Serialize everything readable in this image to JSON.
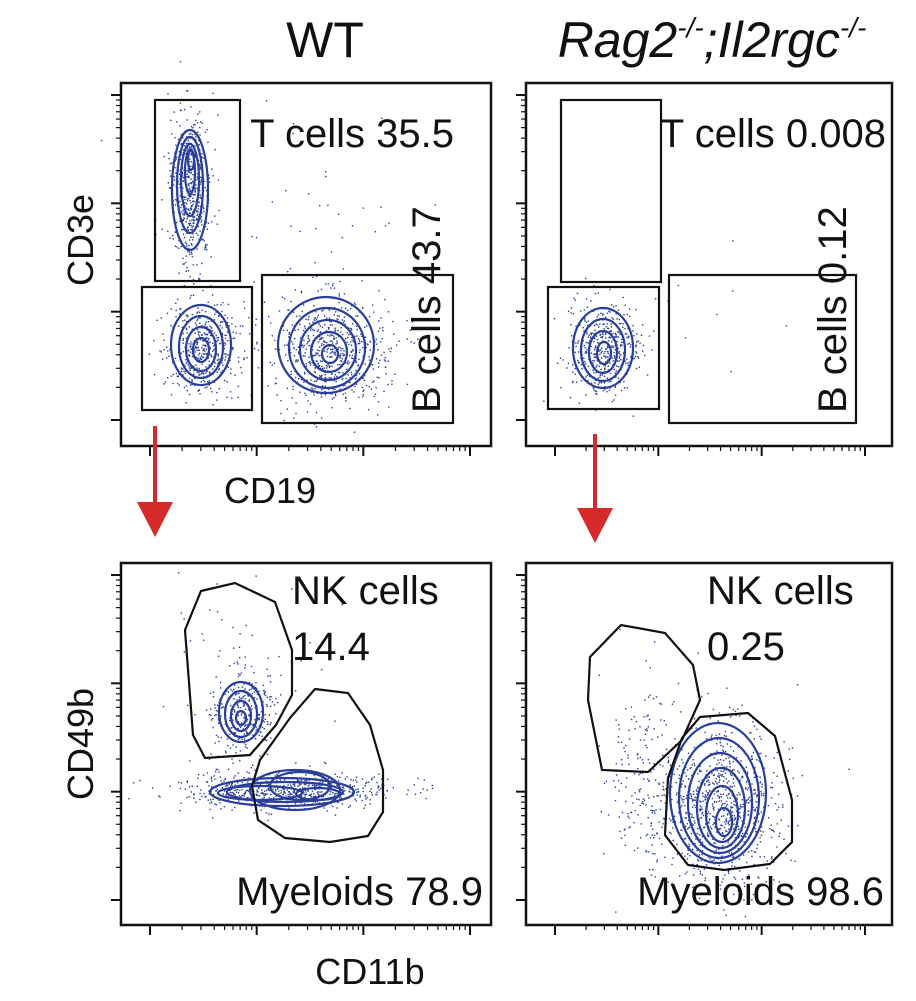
{
  "colors": {
    "population": "#2a3f9a",
    "gate_line": "#111111",
    "arrow": "#d42a2a",
    "frame": "#111111"
  },
  "chart_data": [
    {
      "type": "scatter",
      "panel": "top-left",
      "title": "WT",
      "xlabel": "CD19",
      "ylabel": "CD3e",
      "gates": [
        {
          "name": "T cells",
          "value": "35.5"
        },
        {
          "name": "B cells",
          "value": "43.7"
        }
      ]
    },
    {
      "type": "scatter",
      "panel": "top-right",
      "title_main": "Rag2",
      "title_sup1": "-/-",
      "title_mid": ";Il2rgc",
      "title_sup2": "-/-",
      "gates": [
        {
          "name": "T cells",
          "value": "0.008"
        },
        {
          "name": "B cells",
          "value": "0.12"
        }
      ]
    },
    {
      "type": "scatter",
      "panel": "bottom-left",
      "xlabel": "CD11b",
      "ylabel": "CD49b",
      "gates": [
        {
          "name": "NK cells",
          "value": "14.4"
        },
        {
          "name": "Myeloids",
          "value": "78.9"
        }
      ]
    },
    {
      "type": "scatter",
      "panel": "bottom-right",
      "gates": [
        {
          "name": "NK cells",
          "value": "0.25"
        },
        {
          "name": "Myeloids",
          "value": "98.6"
        }
      ]
    }
  ]
}
